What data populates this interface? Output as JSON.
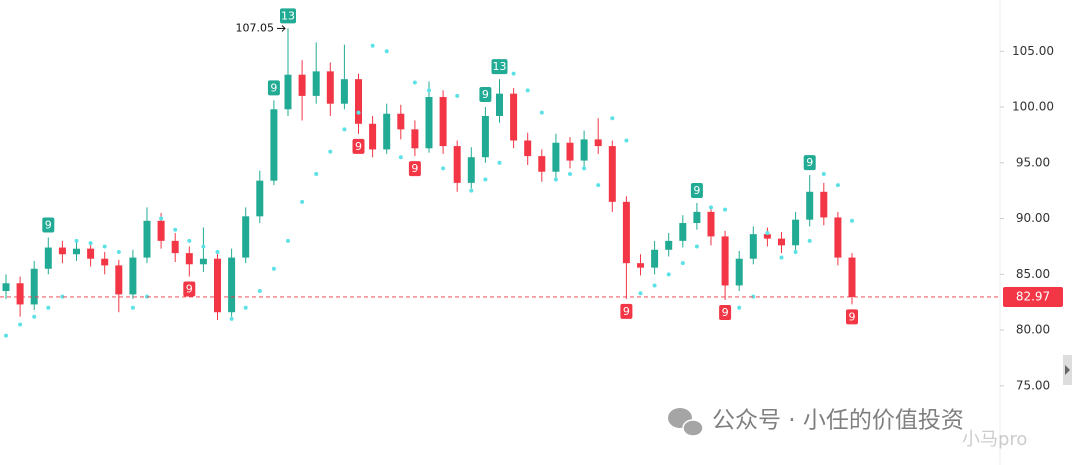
{
  "chart_data": {
    "type": "candlestick",
    "open": [
      83.5,
      84.2,
      82.3,
      85.5,
      87.4,
      86.8,
      87.3,
      86.4,
      85.8,
      83.2,
      86.5,
      89.8,
      88.0,
      86.9,
      85.9,
      86.4,
      81.6,
      86.5,
      90.2,
      93.4,
      99.8,
      102.9,
      101.0,
      103.2,
      100.3,
      102.5,
      98.5,
      96.2,
      99.4,
      98.0,
      96.3,
      100.9,
      96.5,
      93.2,
      95.5,
      99.2,
      101.2,
      97.0,
      95.6,
      94.2,
      96.8,
      95.2,
      97.1,
      96.5,
      91.5,
      86.0,
      85.6,
      87.2,
      88.0,
      89.6,
      90.6,
      88.4,
      84.0,
      86.4,
      88.6,
      88.2,
      87.6,
      89.9,
      92.4,
      90.1,
      86.5
    ],
    "high": [
      85.0,
      84.8,
      86.2,
      88.3,
      88.0,
      88.1,
      87.9,
      87.0,
      86.3,
      87.2,
      91.0,
      90.5,
      88.7,
      87.5,
      89.2,
      87.0,
      87.3,
      91.0,
      94.3,
      100.6,
      107.05,
      104.2,
      105.8,
      104.0,
      105.6,
      103.0,
      99.2,
      100.3,
      100.2,
      98.8,
      102.3,
      101.5,
      97.0,
      96.4,
      100.0,
      102.5,
      101.7,
      97.7,
      96.2,
      97.6,
      97.3,
      97.9,
      99.0,
      97.0,
      92.0,
      86.8,
      88.0,
      88.7,
      90.3,
      91.4,
      91.0,
      88.9,
      87.1,
      89.3,
      89.2,
      88.8,
      90.6,
      93.9,
      93.2,
      90.6,
      86.9
    ],
    "low": [
      82.8,
      81.2,
      81.8,
      85.0,
      86.0,
      86.2,
      85.7,
      85.0,
      81.6,
      82.8,
      86.0,
      87.3,
      86.1,
      84.8,
      85.2,
      80.9,
      81.2,
      86.0,
      89.6,
      93.0,
      99.2,
      98.8,
      100.3,
      99.2,
      99.8,
      97.6,
      95.5,
      95.8,
      97.1,
      95.6,
      95.9,
      95.8,
      92.4,
      92.7,
      95.0,
      98.6,
      96.3,
      94.8,
      93.3,
      93.6,
      94.5,
      94.6,
      95.8,
      90.6,
      82.8,
      84.9,
      85.0,
      86.6,
      87.4,
      89.0,
      87.6,
      82.7,
      83.5,
      85.9,
      87.5,
      86.9,
      87.1,
      89.3,
      89.4,
      85.8,
      82.3
    ],
    "close": [
      84.2,
      82.3,
      85.5,
      87.4,
      86.8,
      87.3,
      86.4,
      85.8,
      83.2,
      86.5,
      89.8,
      88.0,
      86.9,
      85.9,
      86.4,
      81.6,
      86.5,
      90.2,
      93.4,
      99.8,
      102.9,
      101.0,
      103.2,
      100.3,
      102.5,
      98.5,
      96.2,
      99.4,
      98.0,
      96.3,
      100.9,
      96.5,
      93.2,
      95.5,
      99.2,
      101.2,
      97.0,
      95.6,
      94.2,
      96.8,
      95.2,
      97.1,
      96.5,
      91.5,
      86.0,
      85.6,
      87.2,
      88.0,
      89.6,
      90.6,
      88.4,
      84.0,
      86.4,
      88.6,
      88.2,
      87.6,
      89.9,
      92.4,
      90.1,
      86.5,
      82.97
    ],
    "sar": [
      79.5,
      80.5,
      81.2,
      82.0,
      83.0,
      88.0,
      87.8,
      87.5,
      87.0,
      82.0,
      83.0,
      90.0,
      89.0,
      88.0,
      87.5,
      87.0,
      81.0,
      82.0,
      83.5,
      85.5,
      88.0,
      91.5,
      94.0,
      96.0,
      98.0,
      99.5,
      105.5,
      105.0,
      95.5,
      102.2,
      101.5,
      94.5,
      101.0,
      92.5,
      93.5,
      95.0,
      103.0,
      101.5,
      99.5,
      93.5,
      94.0,
      94.5,
      93.0,
      99.0,
      97.0,
      83.3,
      84.0,
      85.0,
      86.0,
      87.5,
      91.0,
      90.8,
      82.0,
      83.0,
      88.7,
      86.5,
      87.0,
      88.0,
      94.0,
      93.0,
      89.8
    ],
    "up_color": "#22ab94",
    "down_color": "#f23645",
    "sar_color": "#5ce1e6",
    "signals": [
      {
        "index": 3,
        "label": "9",
        "position": "above"
      },
      {
        "index": 13,
        "label": "9",
        "position": "below"
      },
      {
        "index": 19,
        "label": "9",
        "position": "above"
      },
      {
        "index": 20,
        "label": "13",
        "position": "above"
      },
      {
        "index": 25,
        "label": "9",
        "position": "below"
      },
      {
        "index": 29,
        "label": "9",
        "position": "below"
      },
      {
        "index": 34,
        "label": "9",
        "position": "above"
      },
      {
        "index": 35,
        "label": "13",
        "position": "above"
      },
      {
        "index": 44,
        "label": "9",
        "position": "below"
      },
      {
        "index": 49,
        "label": "9",
        "position": "above"
      },
      {
        "index": 51,
        "label": "9",
        "position": "below"
      },
      {
        "index": 57,
        "label": "9",
        "position": "above"
      },
      {
        "index": 60,
        "label": "9",
        "position": "below"
      }
    ],
    "max_label": 107.05,
    "last_price": 82.97,
    "ylim": [
      67.9,
      109.6
    ],
    "yticks": [
      {
        "value": 75,
        "label": "75.00"
      },
      {
        "value": 80,
        "label": "80.00"
      },
      {
        "value": 85,
        "label": "85.00"
      },
      {
        "value": 90,
        "label": "90.00"
      },
      {
        "value": 95,
        "label": "95.00"
      },
      {
        "value": 100,
        "label": "100.00"
      },
      {
        "value": 105,
        "label": "105.00"
      }
    ],
    "watermark": "公众号 · 小任的价值投资",
    "watermark_2": "小马pro"
  }
}
